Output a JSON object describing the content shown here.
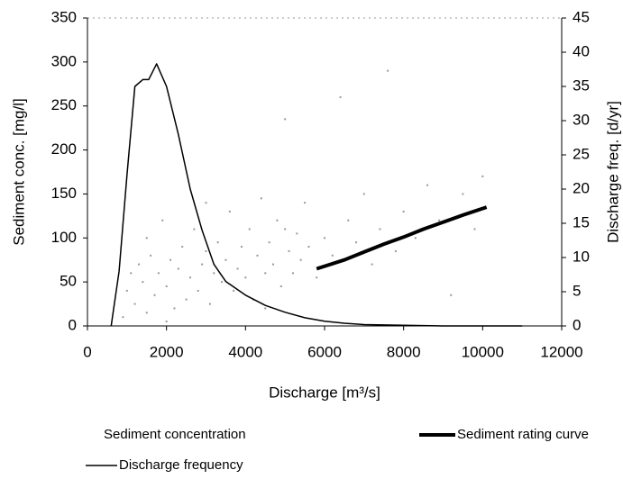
{
  "chart_data": {
    "type": "combo",
    "x_label": "Discharge [m³/s]",
    "y_label": "Sediment conc. [mg/l]",
    "y2_label": "Discharge freq. [d/yr]",
    "xlim": [
      0,
      12000
    ],
    "xticks": [
      0,
      2000,
      4000,
      6000,
      8000,
      10000,
      12000
    ],
    "ylim": [
      0,
      350
    ],
    "yticks": [
      0,
      50,
      100,
      150,
      200,
      250,
      300,
      350
    ],
    "y2lim": [
      0,
      45
    ],
    "y2ticks": [
      0,
      5,
      10,
      15,
      20,
      25,
      30,
      35,
      40,
      45
    ],
    "series": [
      {
        "name": "Sediment concentration",
        "type": "scatter",
        "color": "#999999",
        "x": [
          900,
          1000,
          1100,
          1200,
          1300,
          1400,
          1500,
          1600,
          1700,
          1800,
          1900,
          2000,
          2100,
          2200,
          2300,
          2400,
          2500,
          2600,
          2700,
          2800,
          2900,
          3000,
          3100,
          3200,
          3300,
          3400,
          3500,
          3600,
          3700,
          3800,
          3900,
          4000,
          4100,
          4200,
          4300,
          4400,
          4500,
          4600,
          4700,
          4800,
          4900,
          5000,
          5100,
          5200,
          5300,
          5400,
          5500,
          5600,
          5800,
          6000,
          6200,
          6400,
          6600,
          6800,
          7000,
          7200,
          7400,
          7600,
          7800,
          8000,
          8300,
          8600,
          8900,
          9200,
          9500,
          9800,
          10000,
          5000,
          4500,
          3000,
          2000,
          1500
        ],
        "values": [
          10,
          40,
          60,
          25,
          70,
          50,
          15,
          80,
          35,
          60,
          120,
          45,
          75,
          20,
          65,
          90,
          30,
          55,
          110,
          40,
          70,
          85,
          25,
          60,
          95,
          50,
          75,
          130,
          40,
          65,
          90,
          55,
          110,
          30,
          80,
          145,
          60,
          95,
          70,
          120,
          45,
          235,
          85,
          60,
          105,
          75,
          140,
          90,
          55,
          100,
          80,
          260,
          120,
          95,
          150,
          70,
          110,
          290,
          85,
          130,
          100,
          160,
          120,
          35,
          150,
          110,
          170,
          110,
          20,
          140,
          5,
          100
        ]
      },
      {
        "name": "Sediment rating curve",
        "type": "line",
        "color": "#000000",
        "width": 4,
        "x": [
          5800,
          6500,
          7000,
          7500,
          8000,
          8500,
          9000,
          9500,
          10100
        ],
        "values": [
          65,
          75,
          84,
          93,
          101,
          110,
          118,
          126,
          135
        ]
      },
      {
        "name": "Discharge frequency",
        "type": "line",
        "axis": "y2",
        "color": "#000000",
        "width": 1.5,
        "x": [
          600,
          800,
          1000,
          1200,
          1400,
          1550,
          1750,
          2000,
          2300,
          2600,
          2900,
          3200,
          3500,
          4000,
          4500,
          5000,
          5500,
          6000,
          6500,
          7000,
          8000,
          9000,
          11000
        ],
        "values": [
          0,
          8,
          22,
          35,
          36,
          36,
          38.3,
          35,
          28,
          20,
          14,
          9,
          6.5,
          4.5,
          3,
          2,
          1.2,
          0.7,
          0.4,
          0.2,
          0.1,
          0,
          0
        ]
      }
    ]
  }
}
